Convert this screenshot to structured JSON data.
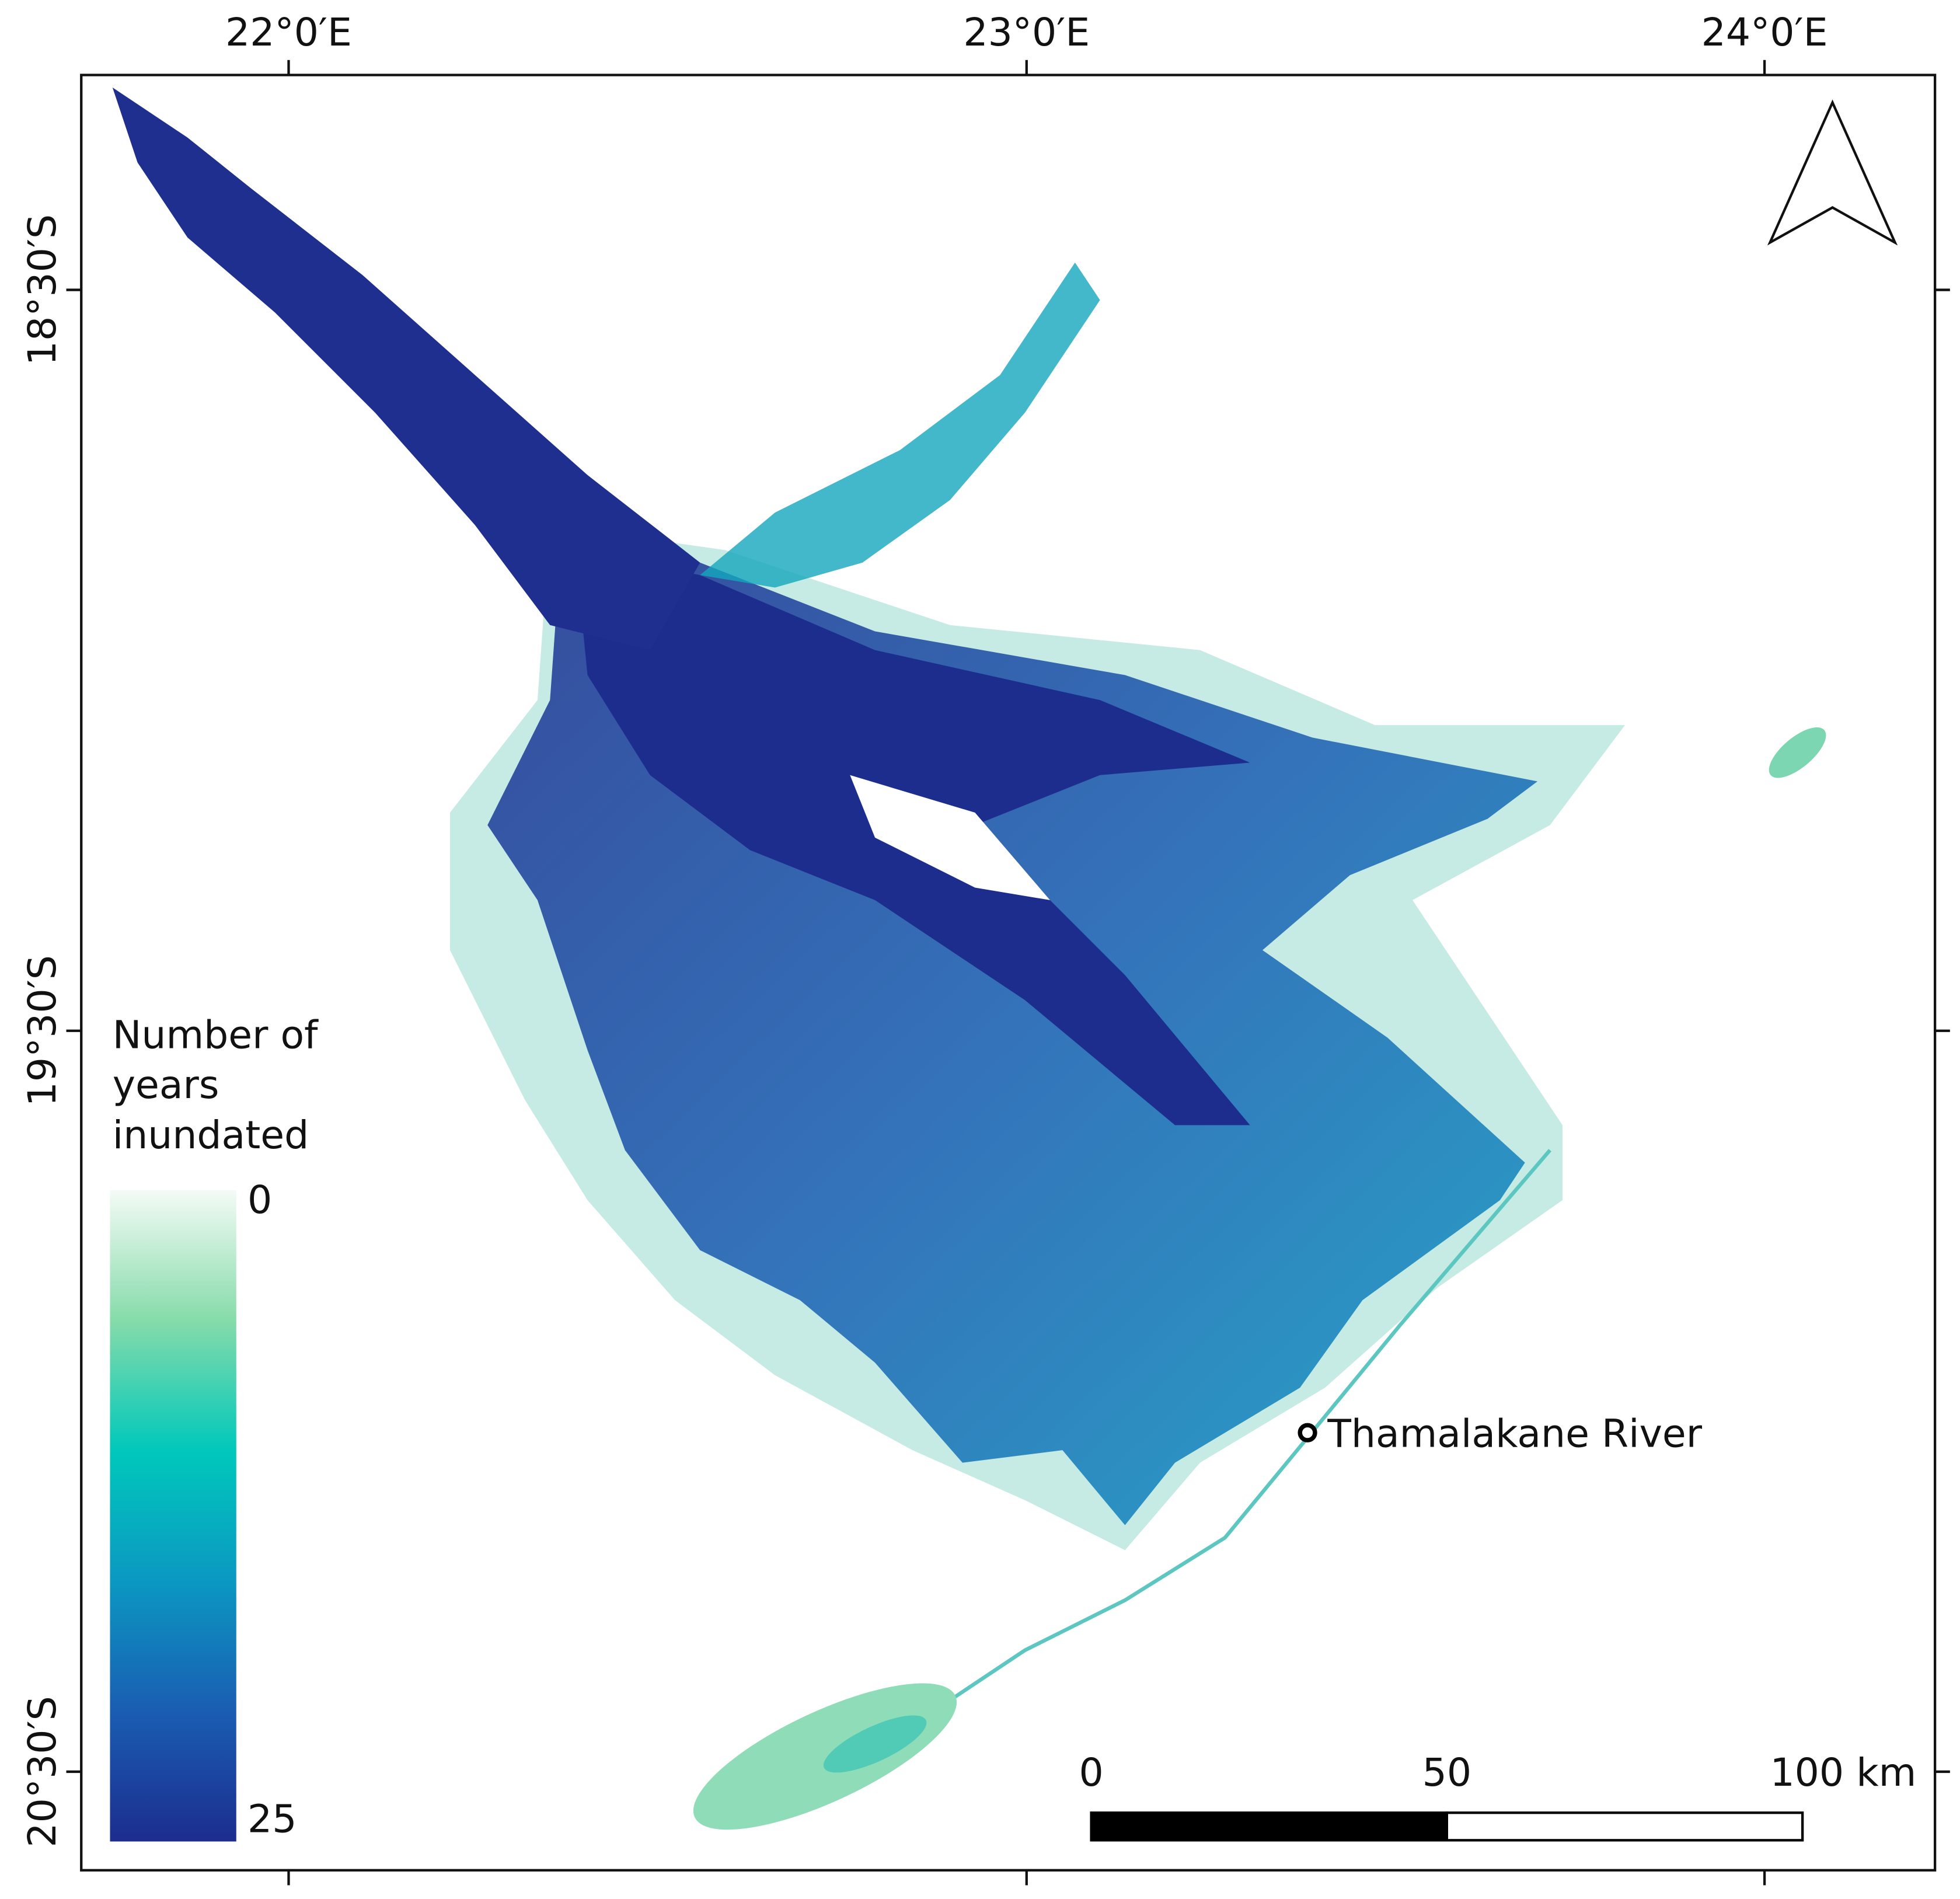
{
  "map": {
    "longitude": {
      "lim": [
        21.719,
        24.231
      ],
      "ticks": [
        {
          "value": 22,
          "label": "22°0′E"
        },
        {
          "value": 23,
          "label": "23°0′E"
        },
        {
          "value": 24,
          "label": "24°0′E"
        }
      ]
    },
    "latitude": {
      "lim": [
        -18.21,
        -20.633
      ],
      "ticks": [
        {
          "value": -18.5,
          "label": "18°30′S"
        },
        {
          "value": -19.5,
          "label": "19°30′S"
        },
        {
          "value": -20.5,
          "label": "20°30′S"
        }
      ]
    },
    "legend": {
      "title_lines": [
        "Number of",
        "years",
        "inundated"
      ],
      "lim": [
        0,
        25
      ],
      "ticks": [
        0,
        25
      ],
      "colors": [
        "#f4fbf6",
        "#86dbaa",
        "#00c8bb",
        "#0b98c2",
        "#1a5db2",
        "#1c2d8e"
      ]
    },
    "scale_bar": {
      "lim": [
        0,
        100
      ],
      "ticks": [
        0,
        50,
        {
          "value": 100,
          "label": "100 km"
        }
      ]
    },
    "place_label": "Thamalakane River"
  }
}
